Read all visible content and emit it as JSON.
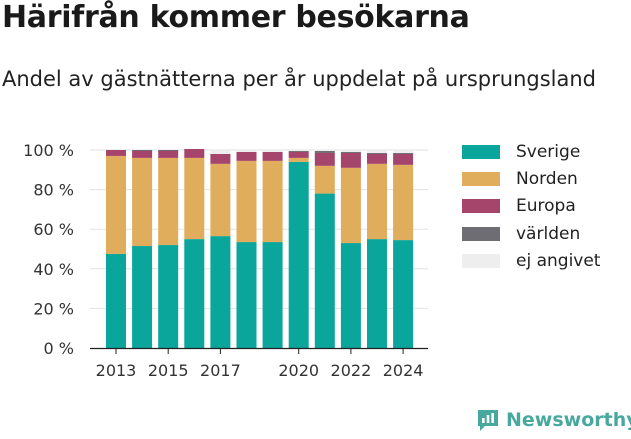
{
  "header": {
    "title": "Härifrån kommer besökarna",
    "subtitle": "Andel av gästnätterna per år uppdelat på ursprungsland"
  },
  "brand": {
    "name": "Newsworthy",
    "icon": "newsworthy-bar-chart-icon",
    "color": "#49a89e"
  },
  "chart_data": {
    "type": "bar",
    "stacked": true,
    "categories": [
      "2013",
      "2014",
      "2015",
      "2016",
      "2017",
      "2018",
      "2019",
      "2020",
      "2021",
      "2022",
      "2023",
      "2024"
    ],
    "x_tick_labels": [
      "2013",
      "2015",
      "2017",
      "2020",
      "2022",
      "2024"
    ],
    "y_tick_labels": [
      "0 %",
      "20 %",
      "40 %",
      "60 %",
      "80 %",
      "100 %"
    ],
    "ylim": [
      0,
      100
    ],
    "grid": true,
    "legend_position": "right",
    "series": [
      {
        "name": "Sverige",
        "color": "#0aa59b",
        "values": [
          47.5,
          51.5,
          52,
          55,
          56.5,
          53.5,
          53.5,
          94,
          78,
          53,
          55,
          54.5
        ]
      },
      {
        "name": "Norden",
        "color": "#dfad5c",
        "values": [
          49.5,
          44.5,
          44,
          41,
          36.5,
          41,
          41,
          2,
          14,
          38,
          38,
          38
        ]
      },
      {
        "name": "Europa",
        "color": "#a6456b",
        "values": [
          3,
          3.5,
          3.5,
          4.5,
          5,
          4.5,
          4.5,
          3,
          6.5,
          7.5,
          5,
          5.5
        ]
      },
      {
        "name": "världen",
        "color": "#6d6d73",
        "values": [
          0,
          0.5,
          0.5,
          0,
          0,
          0,
          0,
          0.5,
          1,
          0.5,
          0.5,
          0.5
        ]
      },
      {
        "name": "ej angivet",
        "color": "#eeeeee",
        "values": [
          0,
          0,
          0,
          0,
          2,
          1,
          1,
          0.5,
          0.5,
          1,
          1.5,
          1.5
        ]
      }
    ]
  }
}
